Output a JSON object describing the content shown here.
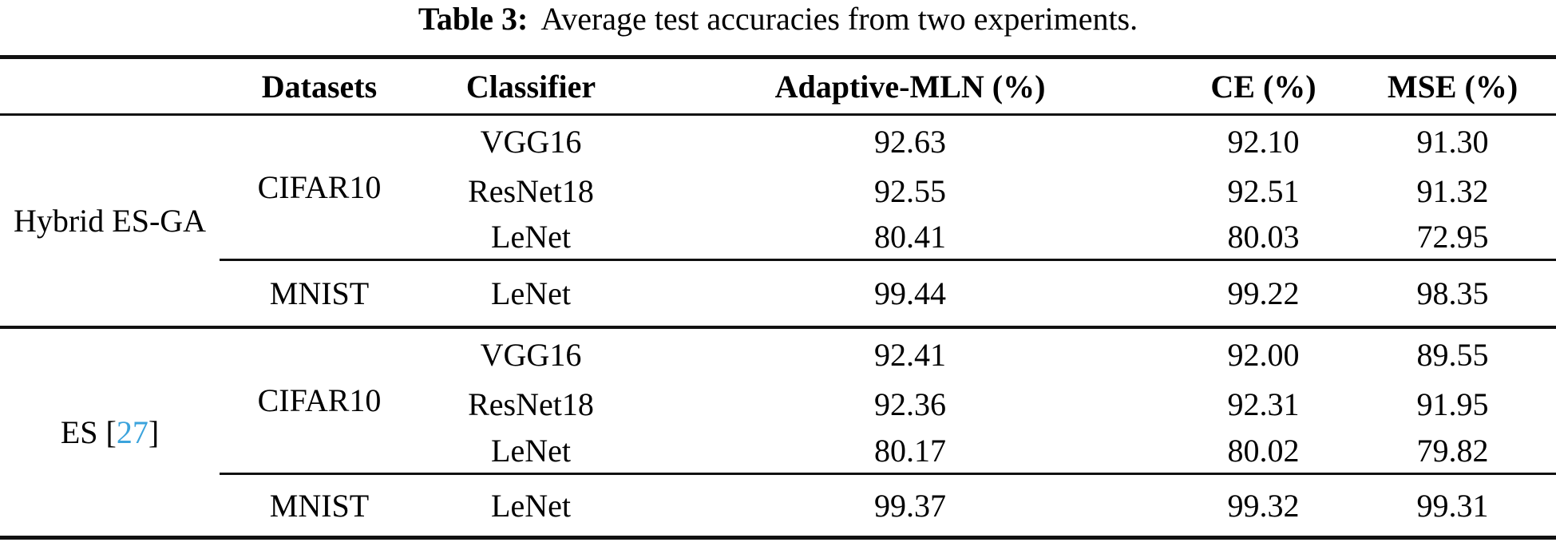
{
  "title": {
    "label": "Table 3:",
    "caption": "Average test accuracies from two experiments."
  },
  "colors": {
    "citation_link": "#3BA3DC",
    "text": "#000000",
    "rule": "#111111"
  },
  "table": {
    "header": {
      "datasets": "Datasets",
      "classifier": "Classifier",
      "adaptive_mln": "Adaptive-MLN (%)",
      "ce": "CE (%)",
      "mse": "MSE (%)"
    },
    "blocks": [
      {
        "method": "Hybrid ES-GA",
        "groups": [
          {
            "dataset": "CIFAR10",
            "rows": [
              {
                "classifier": "VGG16",
                "adaptive_mln": "92.63",
                "ce": "92.10",
                "mse": "91.30"
              },
              {
                "classifier": "ResNet18",
                "adaptive_mln": "92.55",
                "ce": "92.51",
                "mse": "91.32"
              },
              {
                "classifier": "LeNet",
                "adaptive_mln": "80.41",
                "ce": "80.03",
                "mse": "72.95"
              }
            ]
          },
          {
            "dataset": "MNIST",
            "rows": [
              {
                "classifier": "LeNet",
                "adaptive_mln": "99.44",
                "ce": "99.22",
                "mse": "98.35"
              }
            ]
          }
        ]
      },
      {
        "method_prefix": "ES [",
        "citation": "27",
        "method_suffix": "]",
        "groups": [
          {
            "dataset": "CIFAR10",
            "rows": [
              {
                "classifier": "VGG16",
                "adaptive_mln": "92.41",
                "ce": "92.00",
                "mse": "89.55"
              },
              {
                "classifier": "ResNet18",
                "adaptive_mln": "92.36",
                "ce": "92.31",
                "mse": "91.95"
              },
              {
                "classifier": "LeNet",
                "adaptive_mln": "80.17",
                "ce": "80.02",
                "mse": "79.82"
              }
            ]
          },
          {
            "dataset": "MNIST",
            "rows": [
              {
                "classifier": "LeNet",
                "adaptive_mln": "99.37",
                "ce": "99.32",
                "mse": "99.31"
              }
            ]
          }
        ]
      }
    ]
  }
}
